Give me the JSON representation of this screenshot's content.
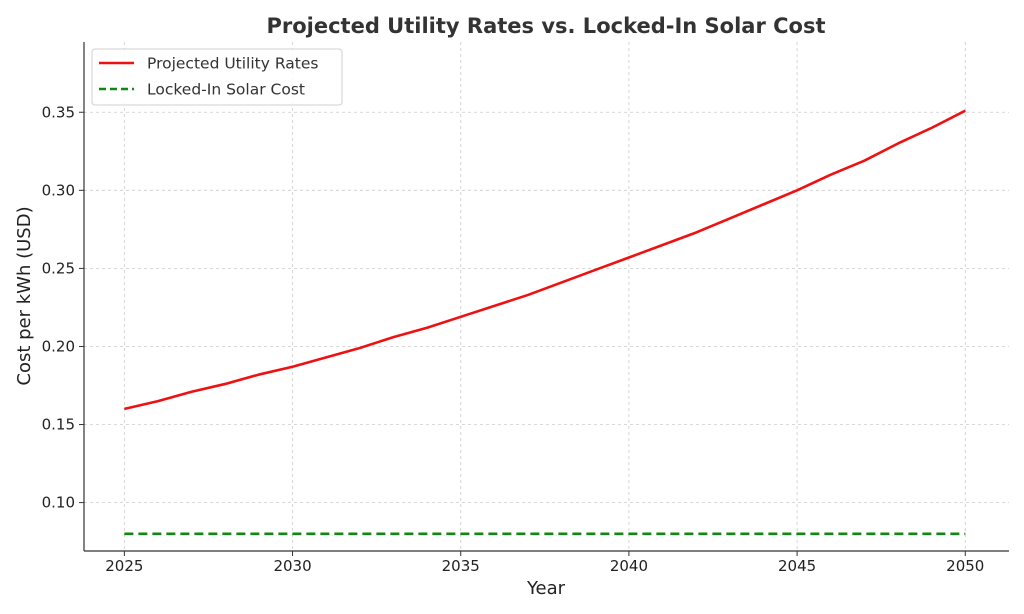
{
  "chart_data": {
    "type": "line",
    "title": "Projected Utility Rates vs. Locked-In Solar Cost",
    "xlabel": "Year",
    "ylabel": "Cost per kWh (USD)",
    "xlim": [
      2023.8,
      2051.3
    ],
    "ylim": [
      0.069,
      0.395
    ],
    "xticks": [
      2025,
      2030,
      2035,
      2040,
      2045,
      2050
    ],
    "xtick_labels": [
      "2025",
      "2030",
      "2035",
      "2040",
      "2045",
      "2050"
    ],
    "yticks": [
      0.1,
      0.15,
      0.2,
      0.25,
      0.3,
      0.35
    ],
    "ytick_labels": [
      "0.10",
      "0.15",
      "0.20",
      "0.25",
      "0.30",
      "0.35"
    ],
    "grid": true,
    "legend_position": "top-left",
    "x": [
      2025,
      2026,
      2027,
      2028,
      2029,
      2030,
      2031,
      2032,
      2033,
      2034,
      2035,
      2036,
      2037,
      2038,
      2039,
      2040,
      2041,
      2042,
      2043,
      2044,
      2045,
      2046,
      2047,
      2048,
      2049,
      2050
    ],
    "series": [
      {
        "name": "Projected Utility Rates",
        "color": "#ee1111",
        "style": "solid",
        "values": [
          0.16,
          0.165,
          0.171,
          0.176,
          0.182,
          0.187,
          0.193,
          0.199,
          0.206,
          0.212,
          0.219,
          0.226,
          0.233,
          0.241,
          0.249,
          0.257,
          0.265,
          0.273,
          0.282,
          0.291,
          0.3,
          0.31,
          0.319,
          0.33,
          0.34,
          0.351
        ]
      },
      {
        "name": "Locked-In Solar Cost",
        "color": "#118811",
        "style": "dashed",
        "values": [
          0.08,
          0.08,
          0.08,
          0.08,
          0.08,
          0.08,
          0.08,
          0.08,
          0.08,
          0.08,
          0.08,
          0.08,
          0.08,
          0.08,
          0.08,
          0.08,
          0.08,
          0.08,
          0.08,
          0.08,
          0.08,
          0.08,
          0.08,
          0.08,
          0.08,
          0.08
        ]
      }
    ]
  }
}
